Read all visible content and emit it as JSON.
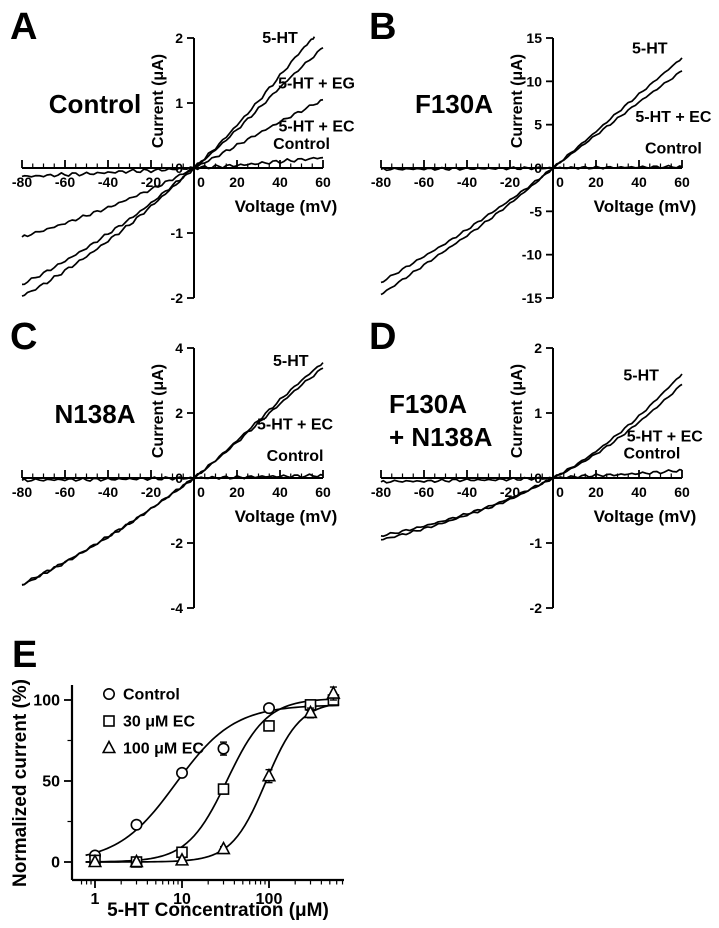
{
  "figure": {
    "background": "#ffffff",
    "ink": "#000000",
    "panel_letters": [
      "A",
      "B",
      "C",
      "D",
      "E"
    ]
  },
  "chart_data": [
    {
      "id": "A",
      "type": "line",
      "panel_label": "A",
      "condition_label": "Control",
      "condition_label2": "",
      "xlabel": "Voltage (mV)",
      "ylabel": "Current (μA)",
      "xlim": [
        -80,
        60
      ],
      "ylim": [
        -2,
        2
      ],
      "xticks": [
        -80,
        -60,
        -40,
        -20,
        0,
        20,
        40,
        60
      ],
      "x_minor_step": 5,
      "yticks": [
        -2,
        -1,
        0,
        1,
        2
      ],
      "grid": false,
      "series": [
        {
          "name": "5-HT",
          "noise": 0.018,
          "label_at": [
            40,
            1.92
          ],
          "x": [
            -80,
            -70,
            -60,
            -50,
            -40,
            -30,
            -20,
            -10,
            0,
            10,
            20,
            30,
            40,
            50,
            56
          ],
          "y": [
            -1.97,
            -1.79,
            -1.58,
            -1.36,
            -1.12,
            -0.87,
            -0.59,
            -0.3,
            0,
            0.31,
            0.66,
            1.03,
            1.42,
            1.81,
            2.02
          ]
        },
        {
          "name": "5-HT + EG",
          "noise": 0.016,
          "label_at": [
            57,
            1.22
          ],
          "x": [
            -80,
            -70,
            -60,
            -50,
            -40,
            -30,
            -20,
            -10,
            0,
            10,
            20,
            30,
            40,
            50,
            60
          ],
          "y": [
            -1.79,
            -1.62,
            -1.43,
            -1.23,
            -1.01,
            -0.79,
            -0.54,
            -0.27,
            0,
            0.28,
            0.59,
            0.91,
            1.24,
            1.55,
            1.85
          ]
        },
        {
          "name": "5-HT + EC",
          "noise": 0.016,
          "label_at": [
            57,
            0.56
          ],
          "x": [
            -80,
            -70,
            -60,
            -50,
            -40,
            -30,
            -20,
            -10,
            0,
            10,
            20,
            30,
            40,
            50,
            60
          ],
          "y": [
            -1.06,
            -0.96,
            -0.85,
            -0.73,
            -0.61,
            -0.47,
            -0.33,
            -0.17,
            0,
            0.17,
            0.35,
            0.53,
            0.71,
            0.88,
            1.05
          ]
        },
        {
          "name": "Control",
          "noise": 0.02,
          "label_at": [
            50,
            0.29
          ],
          "x": [
            -80,
            -70,
            -60,
            -50,
            -40,
            -30,
            -20,
            -10,
            0,
            10,
            20,
            30,
            40,
            50,
            60
          ],
          "y": [
            -0.13,
            -0.12,
            -0.1,
            -0.09,
            -0.07,
            -0.05,
            -0.04,
            -0.02,
            0,
            0.02,
            0.04,
            0.07,
            0.1,
            0.13,
            0.16
          ]
        }
      ]
    },
    {
      "id": "B",
      "type": "line",
      "panel_label": "B",
      "condition_label": "F130A",
      "condition_label2": "",
      "xlabel": "Voltage (mV)",
      "ylabel": "Current (μA)",
      "xlim": [
        -80,
        60
      ],
      "ylim": [
        -15,
        15
      ],
      "xticks": [
        -80,
        -60,
        -40,
        -20,
        0,
        20,
        40,
        60
      ],
      "x_minor_step": 5,
      "yticks": [
        -15,
        -10,
        -5,
        0,
        5,
        10,
        15
      ],
      "grid": false,
      "series": [
        {
          "name": "5-HT",
          "noise": 0.09,
          "label_at": [
            45,
            13.2
          ],
          "x": [
            -80,
            -70,
            -60,
            -50,
            -40,
            -30,
            -20,
            -10,
            0,
            10,
            20,
            30,
            40,
            50,
            60
          ],
          "y": [
            -14.6,
            -12.9,
            -11.2,
            -9.5,
            -7.8,
            -6.0,
            -4.1,
            -2.1,
            0,
            2.1,
            4.2,
            6.4,
            8.5,
            10.6,
            12.7
          ]
        },
        {
          "name": "5-HT + EC",
          "noise": 0.09,
          "label_at": [
            56,
            5.3
          ],
          "x": [
            -80,
            -70,
            -60,
            -50,
            -40,
            -30,
            -20,
            -10,
            0,
            10,
            20,
            30,
            40,
            50,
            60
          ],
          "y": [
            -13.2,
            -11.7,
            -10.2,
            -8.7,
            -7.1,
            -5.4,
            -3.7,
            -1.9,
            0,
            1.9,
            3.8,
            5.7,
            7.6,
            9.4,
            11.2
          ]
        },
        {
          "name": "Control",
          "noise": 0.11,
          "label_at": [
            56,
            1.7
          ],
          "x": [
            -80,
            -70,
            -60,
            -50,
            -40,
            -30,
            -20,
            -10,
            0,
            10,
            20,
            30,
            40,
            50,
            60
          ],
          "y": [
            -0.15,
            -0.13,
            -0.11,
            -0.1,
            -0.08,
            -0.06,
            -0.04,
            -0.02,
            0,
            0.02,
            0.04,
            0.07,
            0.09,
            0.12,
            0.15
          ]
        }
      ]
    },
    {
      "id": "C",
      "type": "line",
      "panel_label": "C",
      "condition_label": "N138A",
      "condition_label2": "",
      "xlabel": "Voltage (mV)",
      "ylabel": "Current (μA)",
      "xlim": [
        -80,
        60
      ],
      "ylim": [
        -4,
        4
      ],
      "xticks": [
        -80,
        -60,
        -40,
        -20,
        0,
        20,
        40,
        60
      ],
      "x_minor_step": 5,
      "yticks": [
        -4,
        -2,
        0,
        2,
        4
      ],
      "grid": false,
      "series": [
        {
          "name": "5-HT",
          "noise": 0.03,
          "label_at": [
            45,
            3.45
          ],
          "x": [
            -80,
            -70,
            -60,
            -50,
            -40,
            -30,
            -20,
            -10,
            0,
            10,
            20,
            30,
            40,
            50,
            60
          ],
          "y": [
            -3.3,
            -2.95,
            -2.6,
            -2.22,
            -1.82,
            -1.4,
            -0.95,
            -0.48,
            0,
            0.55,
            1.15,
            1.77,
            2.4,
            3.0,
            3.55
          ]
        },
        {
          "name": "5-HT + EC",
          "noise": 0.03,
          "label_at": [
            47,
            1.5
          ],
          "x": [
            -80,
            -70,
            -60,
            -50,
            -40,
            -30,
            -20,
            -10,
            0,
            10,
            20,
            30,
            40,
            50,
            60
          ],
          "y": [
            -3.28,
            -2.93,
            -2.58,
            -2.2,
            -1.8,
            -1.39,
            -0.94,
            -0.47,
            0,
            0.53,
            1.1,
            1.69,
            2.28,
            2.86,
            3.38
          ]
        },
        {
          "name": "Control",
          "noise": 0.035,
          "label_at": [
            47,
            0.52
          ],
          "x": [
            -80,
            -70,
            -60,
            -50,
            -40,
            -30,
            -20,
            -10,
            0,
            10,
            20,
            30,
            40,
            50,
            60
          ],
          "y": [
            -0.07,
            -0.06,
            -0.05,
            -0.05,
            -0.04,
            -0.03,
            -0.02,
            -0.01,
            0,
            0.01,
            0.02,
            0.04,
            0.05,
            0.06,
            0.08
          ]
        }
      ]
    },
    {
      "id": "D",
      "type": "line",
      "panel_label": "D",
      "condition_label": "F130A",
      "condition_label2": "+ N138A",
      "xlabel": "Voltage (mV)",
      "ylabel": "Current (μA)",
      "xlim": [
        -80,
        60
      ],
      "ylim": [
        -2,
        2
      ],
      "xticks": [
        -80,
        -60,
        -40,
        -20,
        0,
        20,
        40,
        60
      ],
      "x_minor_step": 5,
      "yticks": [
        -2,
        -1,
        0,
        1,
        2
      ],
      "grid": false,
      "series": [
        {
          "name": "5-HT",
          "noise": 0.012,
          "label_at": [
            41,
            1.5
          ],
          "x": [
            -80,
            -70,
            -60,
            -50,
            -40,
            -30,
            -20,
            -10,
            0,
            10,
            20,
            30,
            40,
            50,
            60
          ],
          "y": [
            -0.95,
            -0.87,
            -0.78,
            -0.68,
            -0.57,
            -0.46,
            -0.33,
            -0.17,
            0,
            0.19,
            0.41,
            0.67,
            0.95,
            1.27,
            1.6
          ]
        },
        {
          "name": "5-HT + EC",
          "noise": 0.012,
          "label_at": [
            52,
            0.56
          ],
          "x": [
            -80,
            -70,
            -60,
            -50,
            -40,
            -30,
            -20,
            -10,
            0,
            10,
            20,
            30,
            40,
            50,
            60
          ],
          "y": [
            -0.89,
            -0.82,
            -0.74,
            -0.65,
            -0.55,
            -0.44,
            -0.31,
            -0.16,
            0,
            0.17,
            0.37,
            0.6,
            0.86,
            1.14,
            1.44
          ]
        },
        {
          "name": "Control",
          "noise": 0.016,
          "label_at": [
            46,
            0.3
          ],
          "x": [
            -80,
            -70,
            -60,
            -50,
            -40,
            -30,
            -20,
            -10,
            0,
            10,
            20,
            30,
            40,
            50,
            60
          ],
          "y": [
            -0.06,
            -0.05,
            -0.05,
            -0.04,
            -0.03,
            -0.03,
            -0.02,
            -0.01,
            0,
            0.02,
            0.04,
            0.05,
            0.07,
            0.09,
            0.12
          ]
        }
      ]
    },
    {
      "id": "E",
      "type": "scatter",
      "panel_label": "E",
      "xlabel": "5-HT Concentration (μM)",
      "ylabel": "Normalized current (%)",
      "xscale": "log",
      "xlim": [
        0.6,
        700
      ],
      "ylim": [
        -11,
        112
      ],
      "xticks": [
        1,
        10,
        100
      ],
      "yticks": [
        0,
        50,
        100
      ],
      "y_minor_step": 25,
      "legend_position": "top-left",
      "series": [
        {
          "name": "Control",
          "marker": "circle",
          "x": [
            1,
            3,
            10,
            30,
            100,
            300,
            550
          ],
          "y": [
            4,
            23,
            55,
            70,
            95,
            96,
            101
          ],
          "err": [
            1.5,
            1.5,
            2,
            4,
            2,
            2,
            3
          ],
          "fit": {
            "max": 97,
            "ec50": 8.5,
            "hill": 1.3
          }
        },
        {
          "name": "30 μM EC",
          "marker": "square",
          "x": [
            1,
            3,
            10,
            30,
            100,
            300,
            550
          ],
          "y": [
            1,
            0,
            6,
            45,
            84,
            97,
            100
          ],
          "err": [
            1,
            1,
            1.5,
            3,
            3,
            2,
            3
          ],
          "fit": {
            "max": 101,
            "ec50": 33,
            "hill": 1.9
          }
        },
        {
          "name": "100 μM EC",
          "marker": "triangle",
          "x": [
            1,
            3,
            10,
            30,
            100,
            300,
            550
          ],
          "y": [
            0,
            0,
            1,
            8,
            53,
            92,
            104
          ],
          "err": [
            1,
            1,
            1.5,
            1.5,
            4,
            3,
            4
          ],
          "fit": {
            "max": 99,
            "ec50": 92,
            "hill": 2.2
          }
        }
      ]
    }
  ]
}
